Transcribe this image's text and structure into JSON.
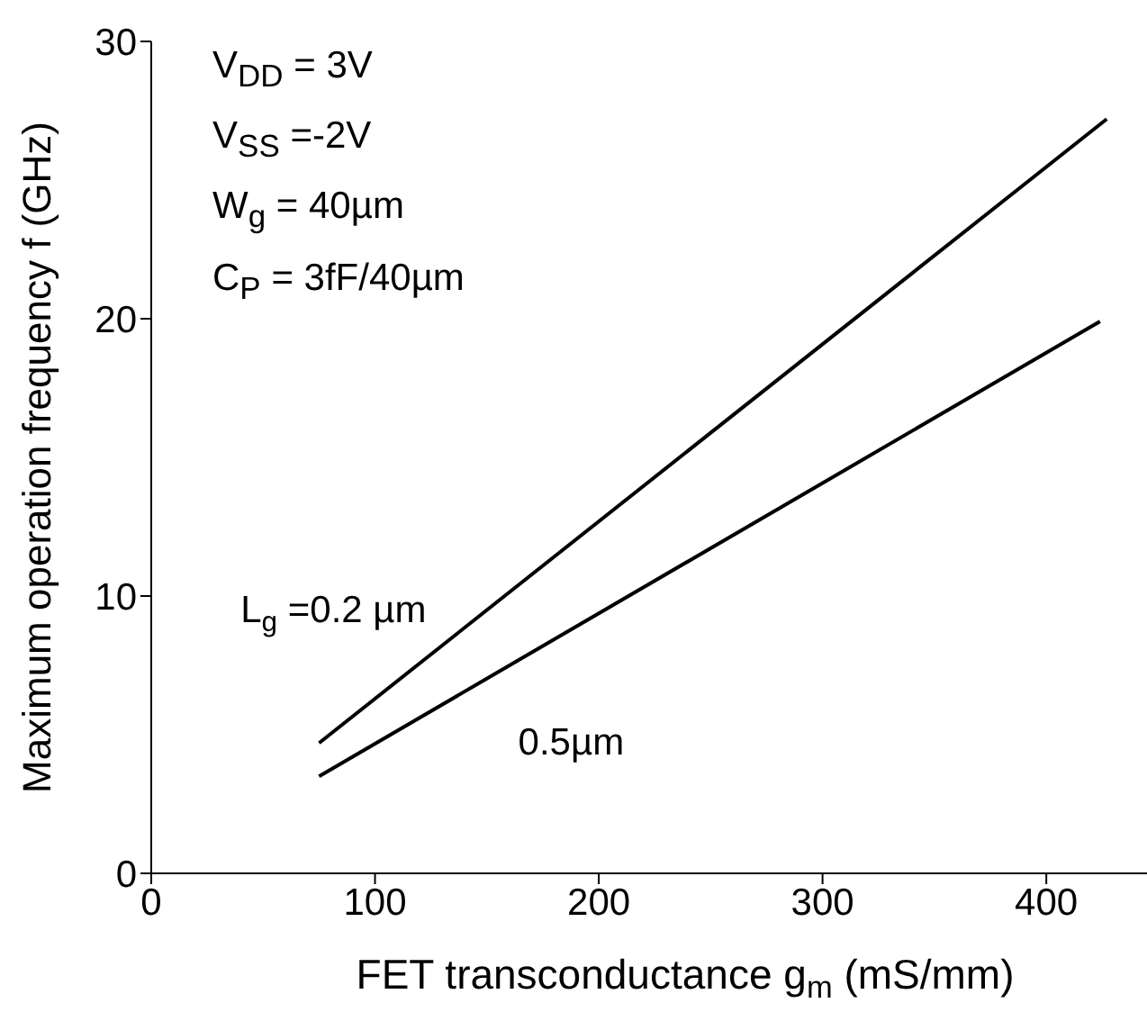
{
  "chart_data": {
    "type": "line",
    "xlabel": "FET  transconductance g$_{m}$ (mS/mm)",
    "ylabel": "Maximum operation frequency  f  (GHz)",
    "series": [
      {
        "name": "L$_{g}$ =0.2 µm",
        "color": "#000000",
        "x": [
          75,
          427
        ],
        "values": [
          4.7,
          27.2
        ]
      },
      {
        "name": "0.5µm",
        "color": "#000000",
        "x": [
          75,
          424
        ],
        "values": [
          3.5,
          19.9
        ]
      }
    ],
    "xlim": [
      0,
      445
    ],
    "xticks": [
      0,
      100,
      200,
      300,
      400
    ],
    "ylim": [
      0,
      30
    ],
    "yticks": [
      0,
      10,
      20,
      30
    ],
    "grid": false,
    "legend": false,
    "marker": "none",
    "line_style": "solid",
    "annotations": [
      "V$_{DD}$ = 3V",
      "V$_{SS}$ =-2V",
      "W$_{g}$ = 40µm",
      "C$_{P}$ = 3fF/40µm"
    ]
  }
}
